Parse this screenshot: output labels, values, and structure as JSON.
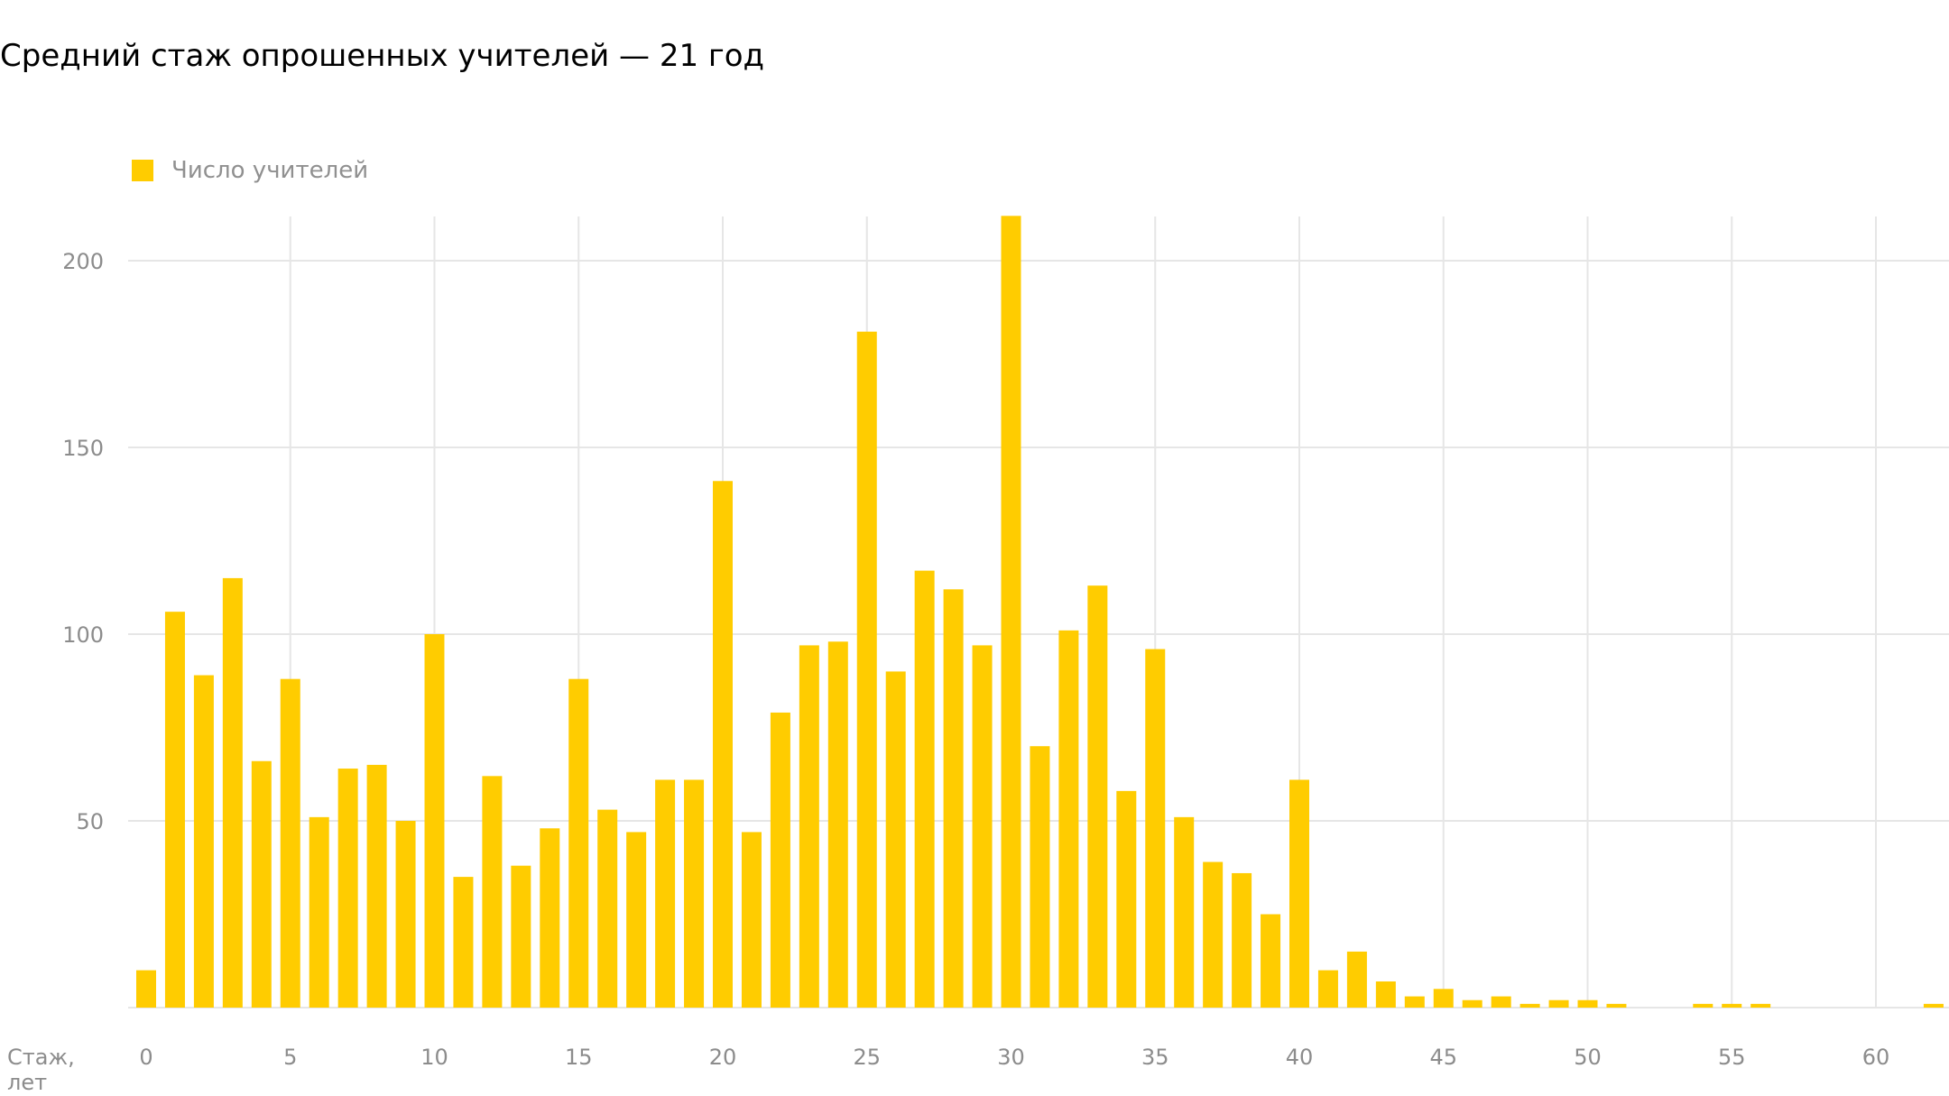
{
  "title": "Средний стаж опрошенных учителей — 21 год",
  "colors": {
    "bar": "#FFCC00",
    "grid": "#e6e6e6",
    "tick_text": "#8c8c8c",
    "background": "#ffffff"
  },
  "legend": {
    "label": "Число учителей",
    "placement": "top-left"
  },
  "chart_data": {
    "type": "bar",
    "title": "Средний стаж опрошенных учителей — 21 год",
    "xlabel": "Стаж, лет",
    "xlabel_lines": [
      "Стаж,",
      "лет"
    ],
    "ylabel": "",
    "xlim": [
      0,
      62
    ],
    "ylim": [
      0,
      212
    ],
    "xticks": [
      0,
      5,
      10,
      15,
      20,
      25,
      30,
      35,
      40,
      45,
      50,
      55,
      60
    ],
    "yticks": [
      50,
      100,
      150,
      200
    ],
    "grid": true,
    "series": [
      {
        "name": "Число учителей",
        "x": [
          0,
          1,
          2,
          3,
          4,
          5,
          6,
          7,
          8,
          9,
          10,
          11,
          12,
          13,
          14,
          15,
          16,
          17,
          18,
          19,
          20,
          21,
          22,
          23,
          24,
          25,
          26,
          27,
          28,
          29,
          30,
          31,
          32,
          33,
          34,
          35,
          36,
          37,
          38,
          39,
          40,
          41,
          42,
          43,
          44,
          45,
          46,
          47,
          48,
          49,
          50,
          51,
          52,
          53,
          54,
          55,
          56,
          57,
          58,
          59,
          60,
          61,
          62
        ],
        "values": [
          10,
          106,
          89,
          115,
          66,
          88,
          51,
          64,
          65,
          50,
          100,
          35,
          62,
          38,
          48,
          88,
          53,
          47,
          61,
          61,
          141,
          47,
          79,
          97,
          98,
          181,
          90,
          117,
          112,
          97,
          212,
          70,
          101,
          113,
          58,
          96,
          51,
          39,
          36,
          25,
          61,
          10,
          15,
          7,
          3,
          5,
          2,
          3,
          1,
          2,
          2,
          1,
          0,
          0,
          1,
          1,
          1,
          0,
          0,
          0,
          0,
          0,
          1
        ]
      }
    ]
  }
}
